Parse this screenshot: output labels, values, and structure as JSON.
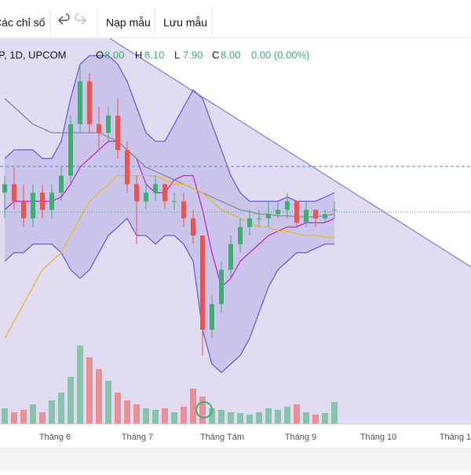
{
  "toolbar": {
    "indicators": "Các chỉ số",
    "load": "Nạp mẫu",
    "save": "Lưu mẫu"
  },
  "legend": {
    "symbol": "P, 1D, UPCOM",
    "o_label": "O",
    "open": "8.00",
    "h_label": "H",
    "high": "8.10",
    "l_label": "L",
    "low": "7.90",
    "c_label": "C",
    "close": "8.00",
    "change": "0.00 (0.00%)"
  },
  "chart_data": {
    "type": "candlestick",
    "x_labels": [
      "Tháng 6",
      "Tháng 7",
      "Tháng Tám",
      "Tháng 9",
      "Tháng 10",
      "Tháng 1"
    ],
    "up_color": "#3fae72",
    "down_color": "#ef5350",
    "ylim": [
      5.5,
      9.9
    ],
    "ohlc": [
      [
        8.2,
        8.4,
        7.9,
        8.3
      ],
      [
        8.3,
        8.5,
        8.0,
        8.1
      ],
      [
        8.1,
        8.3,
        7.8,
        7.9
      ],
      [
        7.9,
        8.3,
        7.8,
        8.2
      ],
      [
        8.2,
        8.3,
        7.9,
        8.0
      ],
      [
        8.0,
        8.3,
        7.9,
        8.2
      ],
      [
        8.2,
        8.5,
        8.1,
        8.4
      ],
      [
        8.4,
        9.1,
        8.3,
        9.0
      ],
      [
        9.0,
        9.7,
        8.9,
        9.5
      ],
      [
        9.5,
        9.6,
        8.9,
        9.0
      ],
      [
        9.0,
        9.2,
        8.7,
        8.9
      ],
      [
        8.9,
        9.2,
        8.8,
        9.1
      ],
      [
        9.1,
        9.3,
        8.6,
        8.7
      ],
      [
        8.7,
        8.8,
        8.2,
        8.3
      ],
      [
        8.3,
        8.4,
        7.6,
        8.1
      ],
      [
        8.1,
        8.3,
        8.0,
        8.2
      ],
      [
        8.2,
        8.4,
        8.1,
        8.3
      ],
      [
        8.3,
        8.3,
        8.0,
        8.1
      ],
      [
        8.1,
        8.2,
        8.0,
        8.1
      ],
      [
        8.1,
        8.2,
        7.8,
        7.9
      ],
      [
        7.9,
        8.0,
        7.6,
        7.7
      ],
      [
        7.7,
        7.7,
        6.3,
        6.6
      ],
      [
        6.6,
        7.0,
        6.5,
        6.9
      ],
      [
        6.9,
        7.4,
        6.8,
        7.3
      ],
      [
        7.3,
        7.7,
        7.2,
        7.6
      ],
      [
        7.6,
        7.9,
        7.5,
        7.8
      ],
      [
        7.8,
        8.0,
        7.7,
        7.9
      ],
      [
        7.9,
        8.0,
        7.8,
        7.9
      ],
      [
        7.9,
        8.1,
        7.8,
        7.95
      ],
      [
        7.95,
        8.1,
        7.9,
        8.0
      ],
      [
        8.0,
        8.2,
        7.9,
        8.1
      ],
      [
        8.1,
        8.1,
        7.8,
        7.85
      ],
      [
        7.85,
        8.1,
        7.8,
        8.0
      ],
      [
        8.0,
        8.0,
        7.8,
        7.9
      ],
      [
        7.9,
        8.0,
        7.85,
        7.95
      ],
      [
        8.0,
        8.1,
        7.9,
        8.0
      ]
    ],
    "volume": [
      20,
      15,
      18,
      25,
      15,
      30,
      40,
      60,
      100,
      85,
      70,
      55,
      40,
      30,
      25,
      20,
      18,
      20,
      15,
      22,
      45,
      35,
      20,
      18,
      15,
      14,
      12,
      15,
      20,
      18,
      22,
      25,
      15,
      12,
      14,
      28
    ],
    "volume_ylim": [
      0,
      110
    ],
    "band": {
      "color": "#6a5fd6",
      "upper": [
        8.6,
        8.7,
        8.7,
        8.7,
        8.6,
        8.6,
        8.8,
        9.3,
        9.7,
        9.8,
        9.8,
        9.8,
        9.7,
        9.5,
        9.2,
        8.9,
        8.8,
        8.8,
        9.0,
        9.2,
        9.4,
        9.3,
        9.0,
        8.7,
        8.4,
        8.2,
        8.1,
        8.1,
        8.1,
        8.1,
        8.15,
        8.1,
        8.1,
        8.1,
        8.15,
        8.2
      ],
      "lower": [
        7.4,
        7.5,
        7.5,
        7.6,
        7.6,
        7.6,
        7.5,
        7.3,
        7.2,
        7.3,
        7.5,
        7.7,
        7.8,
        7.9,
        7.7,
        7.7,
        7.6,
        7.7,
        7.7,
        7.6,
        7.4,
        6.6,
        6.2,
        6.1,
        6.2,
        6.3,
        6.5,
        6.8,
        7.1,
        7.3,
        7.4,
        7.5,
        7.5,
        7.55,
        7.6,
        7.6
      ]
    },
    "overlays": [
      {
        "color": "#c026d3",
        "values": [
          8.0,
          8.1,
          8.1,
          8.1,
          8.1,
          8.1,
          8.15,
          8.3,
          8.5,
          8.6,
          8.7,
          8.8,
          8.8,
          8.7,
          8.6,
          8.3,
          8.2,
          8.2,
          8.35,
          8.4,
          8.4,
          8.0,
          7.5,
          7.1,
          7.2,
          7.4,
          7.5,
          7.6,
          7.7,
          7.75,
          7.8,
          7.8,
          7.85,
          7.85,
          7.85,
          7.9
        ]
      },
      {
        "color": "#8a8a8a",
        "values": [
          9.3,
          9.2,
          9.1,
          9.0,
          8.95,
          8.9,
          8.9,
          8.9,
          8.9,
          8.9,
          8.9,
          8.85,
          8.8,
          8.7,
          8.6,
          8.5,
          8.45,
          8.4,
          8.35,
          8.3,
          8.25,
          8.2,
          8.15,
          8.1,
          8.05,
          8.0,
          7.98,
          7.95,
          7.95,
          7.93,
          7.93,
          7.92,
          7.92,
          7.92,
          7.93,
          7.95
        ]
      },
      {
        "color": "#e8b931",
        "values": [
          6.5,
          6.7,
          6.9,
          7.1,
          7.3,
          7.4,
          7.5,
          7.7,
          7.9,
          8.1,
          8.2,
          8.3,
          8.4,
          8.4,
          8.4,
          8.4,
          8.4,
          8.35,
          8.3,
          8.3,
          8.25,
          8.2,
          8.1,
          8.0,
          7.95,
          7.9,
          7.85,
          7.8,
          7.8,
          7.75,
          7.75,
          7.72,
          7.7,
          7.7,
          7.68,
          7.67
        ]
      }
    ]
  }
}
